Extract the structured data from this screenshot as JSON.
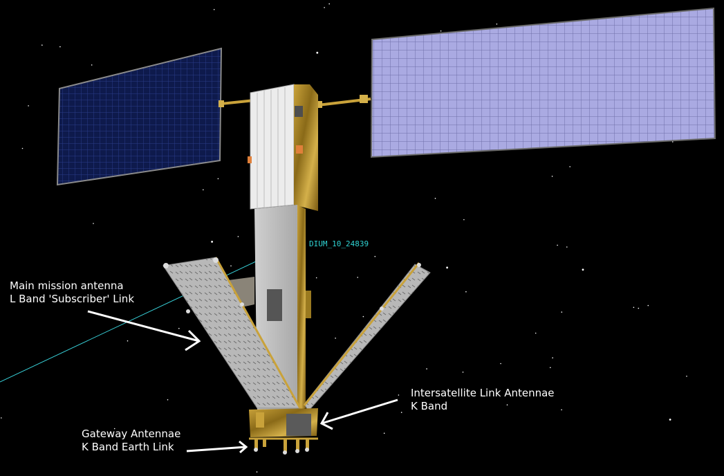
{
  "satellite_id": "DIUM_10_24839",
  "callouts": {
    "main_antenna": {
      "line1": "Main mission antenna",
      "line2": "L Band 'Subscriber' Link"
    },
    "intersatellite": {
      "line1": "Intersatellite Link Antennae",
      "line2": "K Band"
    },
    "gateway": {
      "line1": "Gateway Antennae",
      "line2": "K Band Earth Link"
    }
  },
  "colors": {
    "background": "#000000",
    "label_text": "#ffffff",
    "id_text": "#2fd3d3",
    "orbit_line": "#38d0d8",
    "left_panel": "#0e1a4c",
    "right_panel": "#a8a8e0",
    "gold_foil": "#b08a22",
    "bus_gray": "#bdbdbd"
  }
}
